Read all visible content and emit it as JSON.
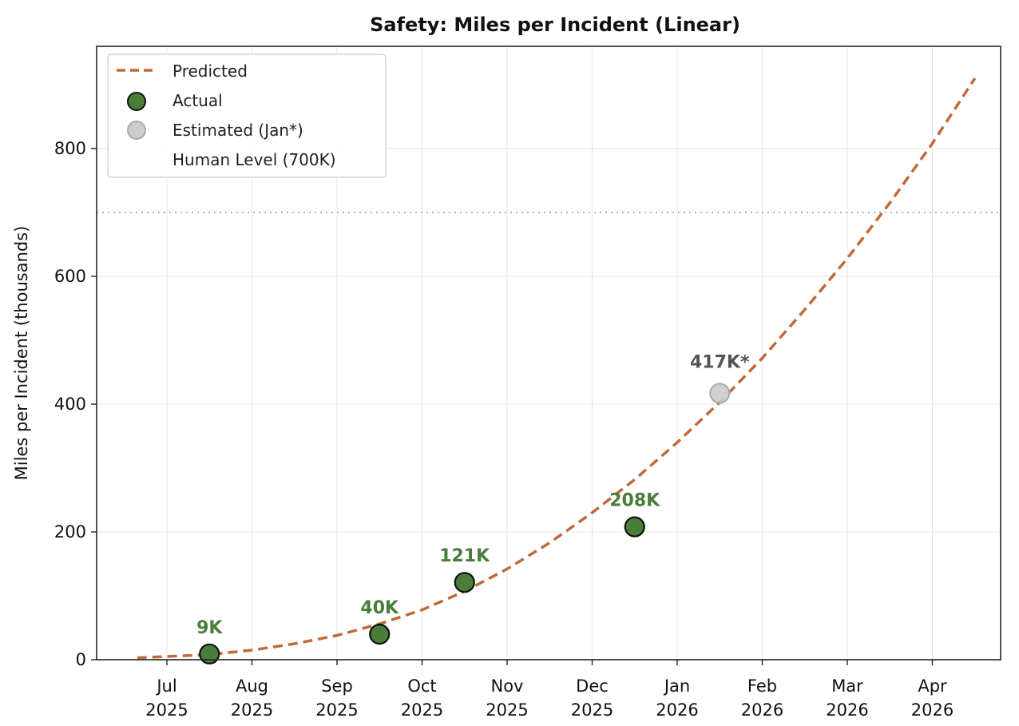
{
  "chart_data": {
    "type": "line",
    "title": "Safety: Miles per Incident (Linear)",
    "xlabel": "",
    "ylabel": "Miles per Incident (thousands)",
    "ylim": [
      0,
      960
    ],
    "yticks": [
      "0",
      "200",
      "400",
      "600",
      "800"
    ],
    "xticks": [
      {
        "month": "Jul",
        "year": "2025"
      },
      {
        "month": "Aug",
        "year": "2025"
      },
      {
        "month": "Sep",
        "year": "2025"
      },
      {
        "month": "Oct",
        "year": "2025"
      },
      {
        "month": "Nov",
        "year": "2025"
      },
      {
        "month": "Dec",
        "year": "2025"
      },
      {
        "month": "Jan",
        "year": "2026"
      },
      {
        "month": "Feb",
        "year": "2026"
      },
      {
        "month": "Mar",
        "year": "2026"
      },
      {
        "month": "Apr",
        "year": "2026"
      }
    ],
    "grid": true,
    "legend_position": "top-left",
    "legend": {
      "predicted": "Predicted",
      "actual": "Actual",
      "estimated": "Estimated (Jan*)",
      "human": "Human Level (700K)"
    },
    "series": [
      {
        "name": "Predicted",
        "style": "dashed",
        "color": "#c0693a",
        "x": [
          -0.35,
          0.0,
          0.5,
          1.0,
          1.5,
          2.0,
          2.5,
          3.0,
          3.5,
          4.0,
          4.5,
          5.0,
          5.5,
          6.0,
          6.5,
          7.0,
          7.5,
          8.0,
          8.5,
          9.0,
          9.5
        ],
        "values": [
          3,
          5,
          8,
          15,
          25,
          38,
          56,
          78,
          107,
          142,
          183,
          230,
          282,
          340,
          403,
          472,
          548,
          628,
          715,
          808,
          910
        ]
      },
      {
        "name": "Actual",
        "color": "#4a7c3a",
        "x": [
          0.5,
          2.5,
          3.5,
          5.5
        ],
        "values": [
          9,
          40,
          121,
          208
        ],
        "labels": [
          "9K",
          "40K",
          "121K",
          "208K"
        ]
      },
      {
        "name": "Estimated (Jan*)",
        "color": "#cccccc",
        "x": [
          6.5
        ],
        "values": [
          417
        ],
        "labels": [
          "417K*"
        ]
      }
    ],
    "reference_lines": [
      {
        "name": "Human Level (700K)",
        "value": 700,
        "style": "dotted",
        "color": "#b0b0b0"
      }
    ],
    "colors": {
      "predicted": "#c0693a",
      "actual_fill": "#4a7c3a",
      "actual_label": "#4a7c3a",
      "estimated_fill": "#cccccc",
      "estimated_label": "#555555",
      "human_line": "#b0b0b0",
      "grid": "#e5e5e5"
    }
  }
}
